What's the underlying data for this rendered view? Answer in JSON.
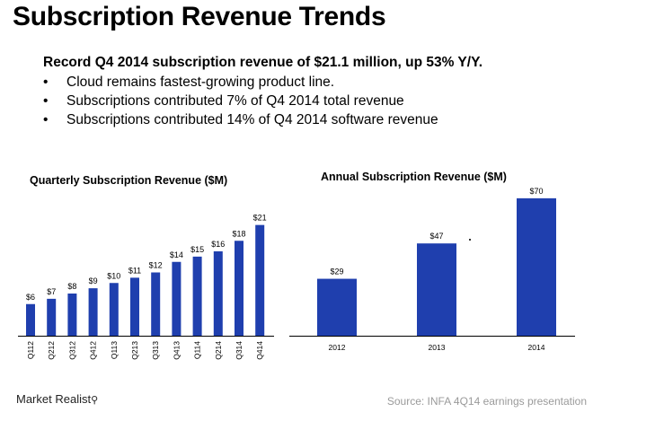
{
  "slide": {
    "title": "Subscription Revenue Trends",
    "headline": "Record Q4 2014 subscription revenue of $21.1 million, up 53% Y/Y.",
    "bullets": [
      "Cloud remains fastest-growing product line.",
      "Subscriptions contributed 7% of Q4 2014 total revenue",
      "Subscriptions contributed 14% of Q4 2014 software revenue"
    ],
    "bullet_glyph": "•",
    "logo_text": "Market Realist",
    "logo_icon": "magnifier-icon",
    "source": "Source: INFA 4Q14 earnings presentation"
  },
  "colors": {
    "bar": "#1f3fae",
    "bar_edge": "#15308a",
    "axis": "#000000",
    "source_text": "#9a9a9a"
  },
  "chart_data": [
    {
      "type": "bar",
      "title": "Quarterly Subscription Revenue ($M)",
      "categories": [
        "Q112",
        "Q212",
        "Q312",
        "Q412",
        "Q113",
        "Q213",
        "Q313",
        "Q413",
        "Q114",
        "Q214",
        "Q314",
        "Q414"
      ],
      "values": [
        6,
        7,
        8,
        9,
        10,
        11,
        12,
        14,
        15,
        16,
        18,
        21
      ],
      "data_labels": [
        "$6",
        "$7",
        "$8",
        "$9",
        "$10",
        "$11",
        "$12",
        "$14",
        "$15",
        "$16",
        "$18",
        "$21"
      ],
      "ylim": [
        0,
        24
      ],
      "grid": false,
      "tick_rotation": "vertical"
    },
    {
      "type": "bar",
      "title": "Annual Subscription Revenue ($M)",
      "categories": [
        "2012",
        "2013",
        "2014"
      ],
      "values": [
        29,
        47,
        70
      ],
      "data_labels": [
        "$29",
        "$47",
        "$70"
      ],
      "ylim": [
        0,
        80
      ],
      "grid": false
    }
  ]
}
